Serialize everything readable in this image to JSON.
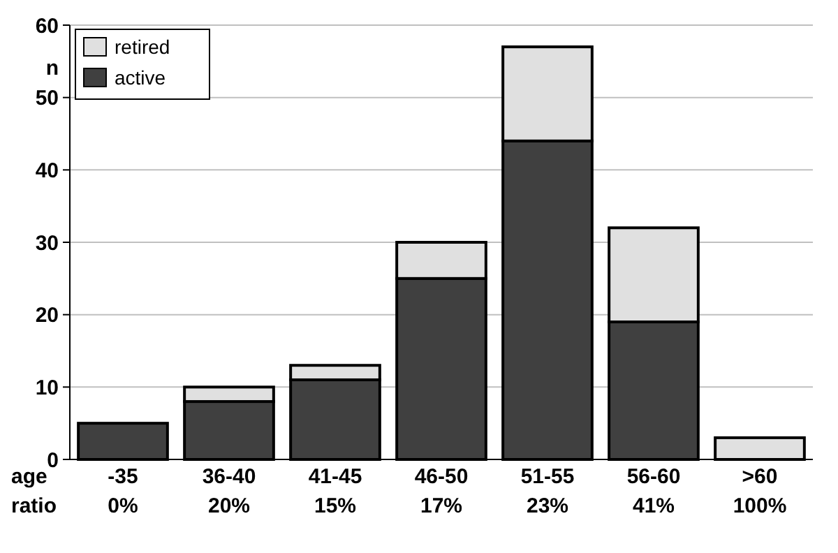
{
  "chart_data": {
    "type": "bar",
    "stacked": true,
    "ylabel": "n",
    "xlabel": "age",
    "categories": [
      "-35",
      "36-40",
      "41-45",
      "46-50",
      "51-55",
      "56-60",
      ">60"
    ],
    "series": [
      {
        "name": "active",
        "color": "#404040",
        "values": [
          5,
          8,
          11,
          25,
          44,
          19,
          0
        ]
      },
      {
        "name": "retired",
        "color": "#e0e0e0",
        "values": [
          0,
          2,
          2,
          5,
          13,
          13,
          3
        ]
      }
    ],
    "ylim": [
      0,
      60
    ],
    "yticks": [
      0,
      10,
      20,
      30,
      40,
      50,
      60
    ],
    "grid": "y",
    "legend": "top left",
    "annotations": [
      "ratio",
      "0%",
      "20%",
      "15%",
      "17%",
      "23%",
      "41%",
      "100%"
    ]
  }
}
